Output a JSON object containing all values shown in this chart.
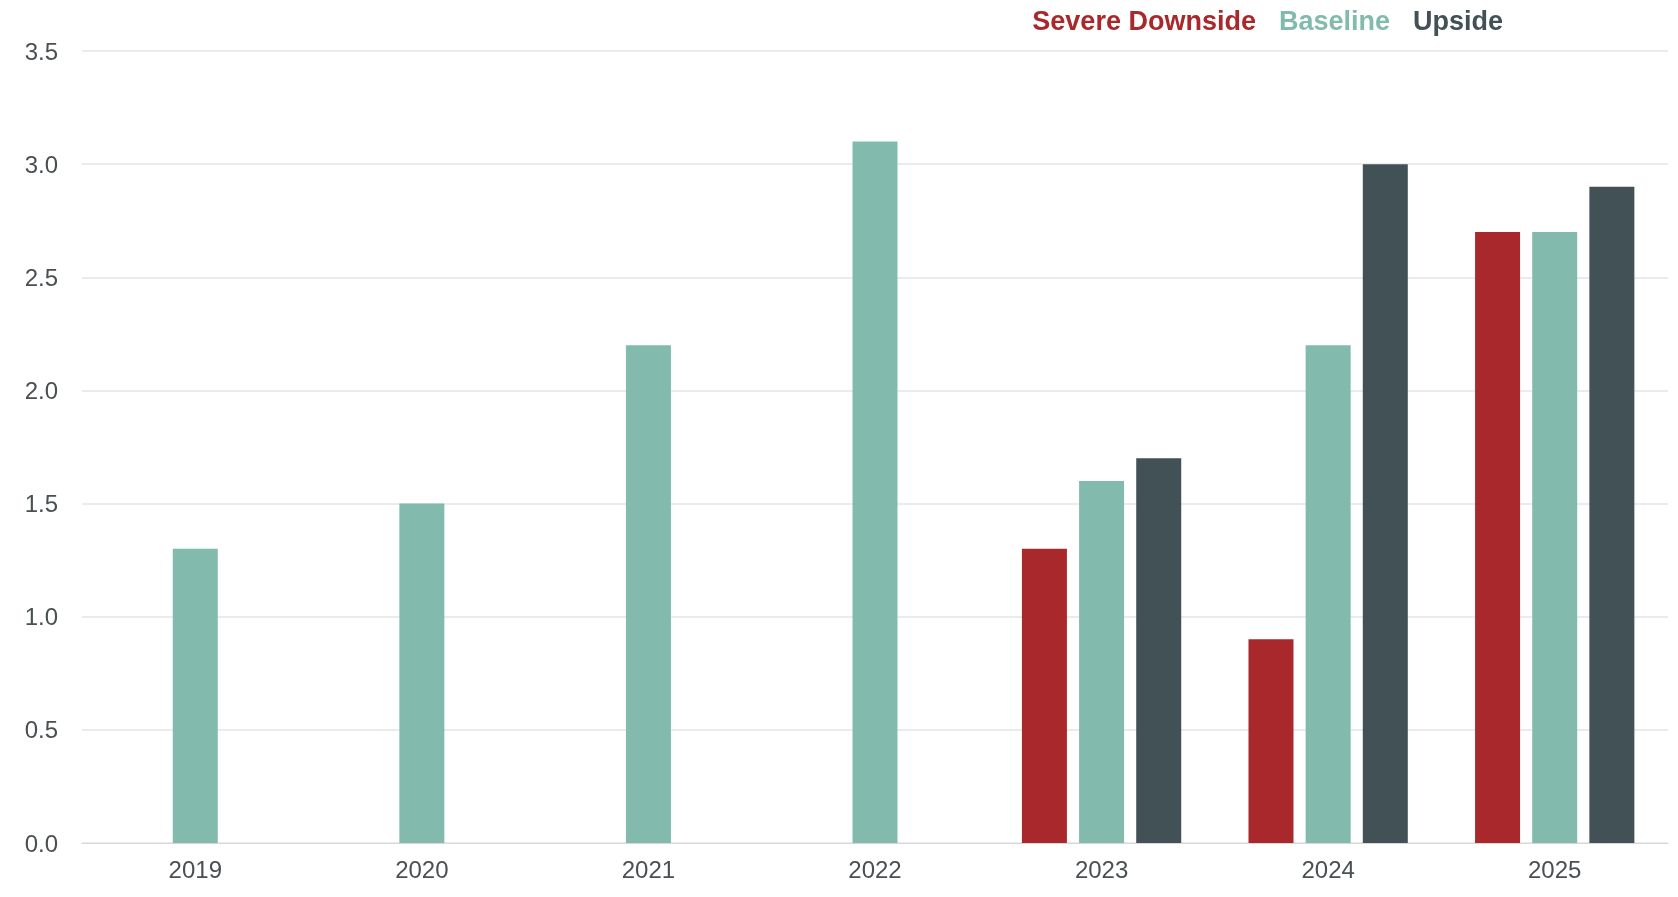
{
  "chart_data": {
    "type": "bar",
    "categories": [
      "2019",
      "2020",
      "2021",
      "2022",
      "2023",
      "2024",
      "2025"
    ],
    "series": [
      {
        "name": "Severe Downside",
        "color": "#a9282b",
        "values": [
          null,
          null,
          null,
          null,
          1.3,
          0.9,
          2.7
        ]
      },
      {
        "name": "Baseline",
        "color": "#82bbad",
        "values": [
          1.3,
          1.5,
          2.2,
          3.1,
          1.6,
          2.2,
          2.7
        ]
      },
      {
        "name": "Upside",
        "color": "#425155",
        "values": [
          null,
          null,
          null,
          null,
          1.7,
          3.0,
          2.9
        ]
      }
    ],
    "ylim": [
      0,
      3.5
    ],
    "yticks": [
      {
        "value": 0,
        "label": "0.0"
      },
      {
        "value": 0.5,
        "label": "0.5"
      },
      {
        "value": 1,
        "label": "1.0"
      },
      {
        "value": 1.5,
        "label": "1.5"
      },
      {
        "value": 2,
        "label": "2.0"
      },
      {
        "value": 2.5,
        "label": "2.5"
      },
      {
        "value": 3,
        "label": "3.0"
      },
      {
        "value": 3.5,
        "label": "3.5"
      }
    ],
    "grid": "y",
    "legend": "top right"
  }
}
